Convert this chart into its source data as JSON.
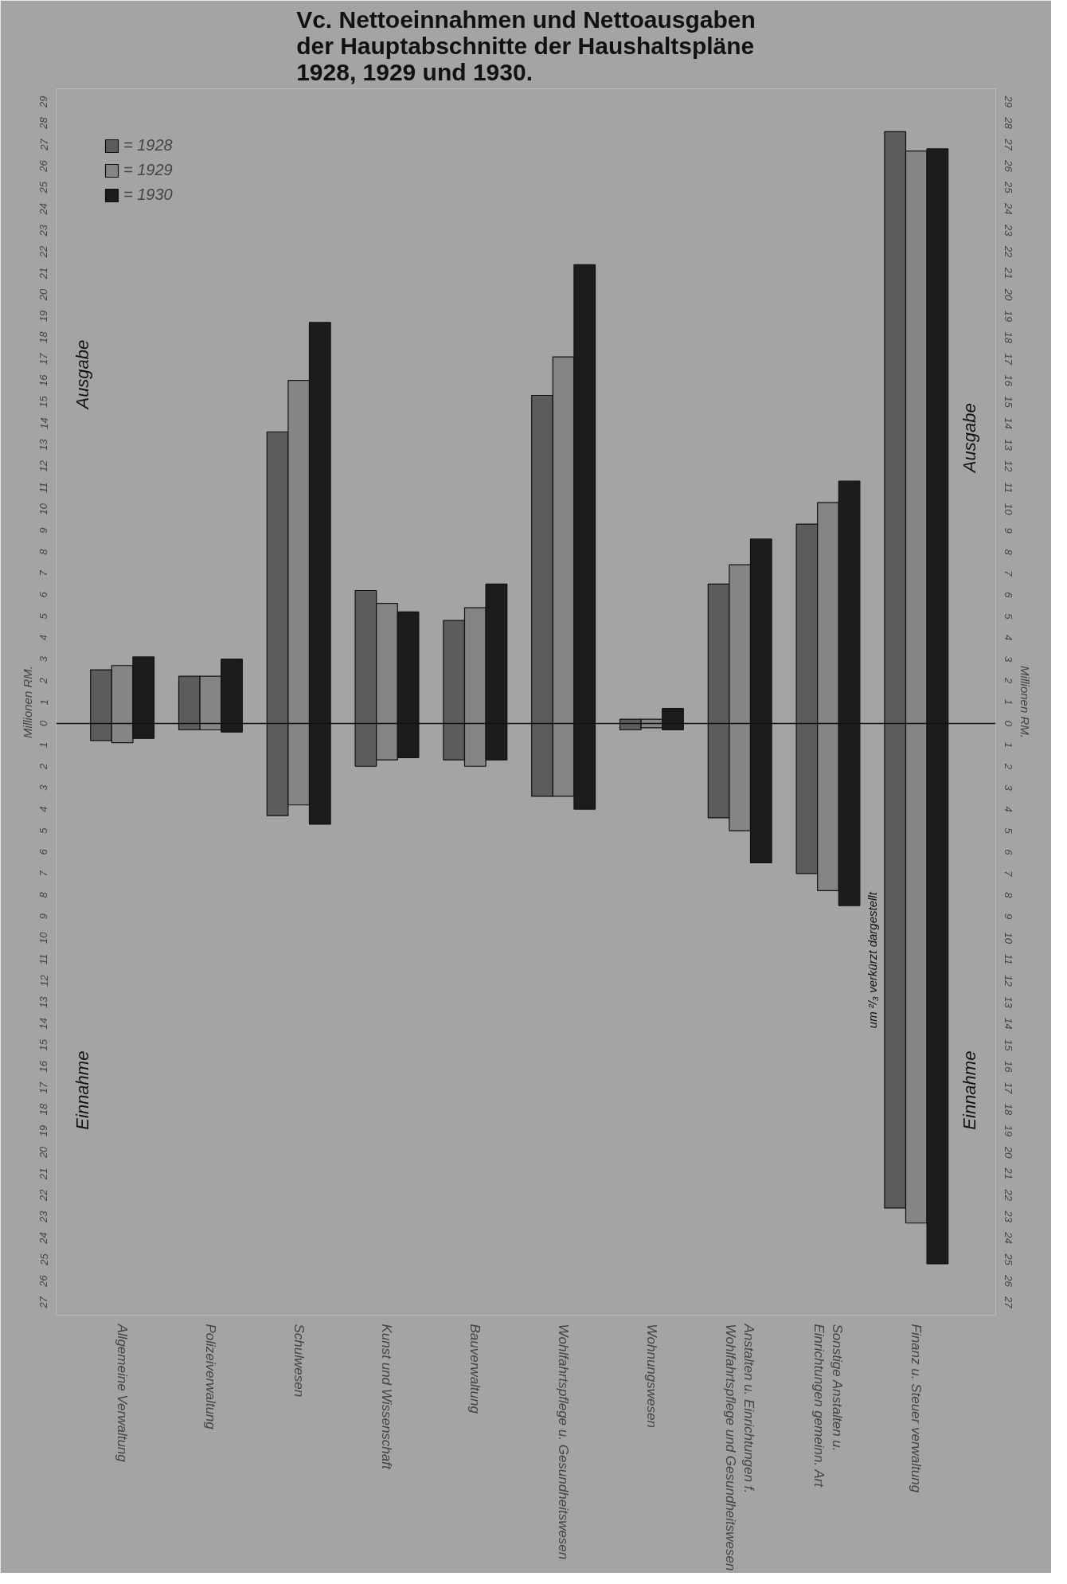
{
  "chart_data": {
    "type": "bar",
    "title": "Vc. Nettoeinnahmen und Nettoausgaben\nder Hauptabschnitte der Haushaltspläne\n1928, 1929 und 1930.",
    "ylabel": "Millionen RM.",
    "y2label": "Millionen RM.",
    "categories": [
      "Allgemeine Verwaltung",
      "Polizeiverwaltung",
      "Schulwesen",
      "Kunst und Wissenschaft",
      "Bauverwaltung",
      "Wohlfahrtspflege u. Gesundheitswesen",
      "Wohnungswesen",
      "Anstalten u. Einrichtungen f. Wohlfahrtspflege und Gesundheitswesen",
      "Sonstige Anstalten u. Einrichtungen gemeinn. Art",
      "Finanz u. Steuer verwaltung"
    ],
    "series": [
      {
        "name": "= 1928",
        "color": "#5c5c5c",
        "base": [
          -0.8,
          -0.3,
          -4.3,
          -2.0,
          -1.7,
          -3.4,
          -0.3,
          -4.4,
          -7.0,
          -22.6
        ],
        "values": [
          3.3,
          2.5,
          17.9,
          8.2,
          6.5,
          18.7,
          0.5,
          10.9,
          16.3,
          50.2
        ]
      },
      {
        "name": "= 1929",
        "color": "#858585",
        "base": [
          -0.9,
          -0.3,
          -3.8,
          -1.7,
          -2.0,
          -3.4,
          -0.2,
          -5.0,
          -7.8,
          -23.3
        ],
        "values": [
          3.6,
          2.5,
          19.8,
          7.3,
          7.4,
          20.5,
          0.4,
          12.4,
          18.1,
          50.0
        ]
      },
      {
        "name": "= 1930",
        "color": "#1c1c1c",
        "base": [
          -0.7,
          -0.4,
          -4.7,
          -1.6,
          -1.7,
          -4.0,
          -0.3,
          -6.5,
          -8.5,
          -25.2
        ],
        "values": [
          3.8,
          3.4,
          23.4,
          6.8,
          8.2,
          25.4,
          1.0,
          15.1,
          19.8,
          52.0
        ]
      }
    ],
    "ylim": [
      -27.6,
      29.6
    ],
    "yticks": [
      {
        "value": -27,
        "label": "27"
      },
      {
        "value": -26,
        "label": "26"
      },
      {
        "value": -25,
        "label": "25"
      },
      {
        "value": -24,
        "label": "24"
      },
      {
        "value": -23,
        "label": "23"
      },
      {
        "value": -22,
        "label": "22"
      },
      {
        "value": -21,
        "label": "21"
      },
      {
        "value": -20,
        "label": "20"
      },
      {
        "value": -19,
        "label": "19"
      },
      {
        "value": -18,
        "label": "18"
      },
      {
        "value": -17,
        "label": "17"
      },
      {
        "value": -16,
        "label": "16"
      },
      {
        "value": -15,
        "label": "15"
      },
      {
        "value": -14,
        "label": "14"
      },
      {
        "value": -13,
        "label": "13"
      },
      {
        "value": -12,
        "label": "12"
      },
      {
        "value": -11,
        "label": "11"
      },
      {
        "value": -10,
        "label": "10"
      },
      {
        "value": -9,
        "label": "9"
      },
      {
        "value": -8,
        "label": "8"
      },
      {
        "value": -7,
        "label": "7"
      },
      {
        "value": -6,
        "label": "6"
      },
      {
        "value": -5,
        "label": "5"
      },
      {
        "value": -4,
        "label": "4"
      },
      {
        "value": -3,
        "label": "3"
      },
      {
        "value": -2,
        "label": "2"
      },
      {
        "value": -1,
        "label": "1"
      },
      0,
      1,
      2,
      3,
      4,
      5,
      6,
      7,
      8,
      9,
      10,
      11,
      12,
      13,
      14,
      15,
      16,
      17,
      18,
      19,
      20,
      21,
      22,
      23,
      24,
      25,
      26,
      27,
      28,
      29
    ],
    "y2lim": [
      -27.6,
      29.6
    ],
    "y2ticks": [
      {
        "value": -27,
        "label": "27"
      },
      {
        "value": -26,
        "label": "26"
      },
      {
        "value": -25,
        "label": "25"
      },
      {
        "value": -24,
        "label": "24"
      },
      {
        "value": -23,
        "label": "23"
      },
      {
        "value": -22,
        "label": "22"
      },
      {
        "value": -21,
        "label": "21"
      },
      {
        "value": -20,
        "label": "20"
      },
      {
        "value": -19,
        "label": "19"
      },
      {
        "value": -18,
        "label": "18"
      },
      {
        "value": -17,
        "label": "17"
      },
      {
        "value": -16,
        "label": "16"
      },
      {
        "value": -15,
        "label": "15"
      },
      {
        "value": -14,
        "label": "14"
      },
      {
        "value": -13,
        "label": "13"
      },
      {
        "value": -12,
        "label": "12"
      },
      {
        "value": -11,
        "label": "11"
      },
      {
        "value": -10,
        "label": "10"
      },
      {
        "value": -9,
        "label": "9"
      },
      {
        "value": -8,
        "label": "8"
      },
      {
        "value": -7,
        "label": "7"
      },
      {
        "value": -6,
        "label": "6"
      },
      {
        "value": -5,
        "label": "5"
      },
      {
        "value": -4,
        "label": "4"
      },
      {
        "value": -3,
        "label": "3"
      },
      {
        "value": -2,
        "label": "2"
      },
      {
        "value": -1,
        "label": "1"
      },
      0,
      1,
      2,
      3,
      4,
      5,
      6,
      7,
      8,
      9,
      10,
      11,
      12,
      13,
      14,
      15,
      16,
      17,
      18,
      19,
      20,
      21,
      22,
      23,
      24,
      25,
      26,
      27,
      28,
      29
    ],
    "ref_lines": [
      {
        "axis": "y",
        "value": 0,
        "color": "#111111"
      }
    ],
    "annotations": [
      "Ausgabe",
      "Einnahme",
      "Ausgabe",
      "Einnahme",
      "um ²/₃ verkürzt dargestellt"
    ],
    "legend": "top left",
    "grid": false
  }
}
